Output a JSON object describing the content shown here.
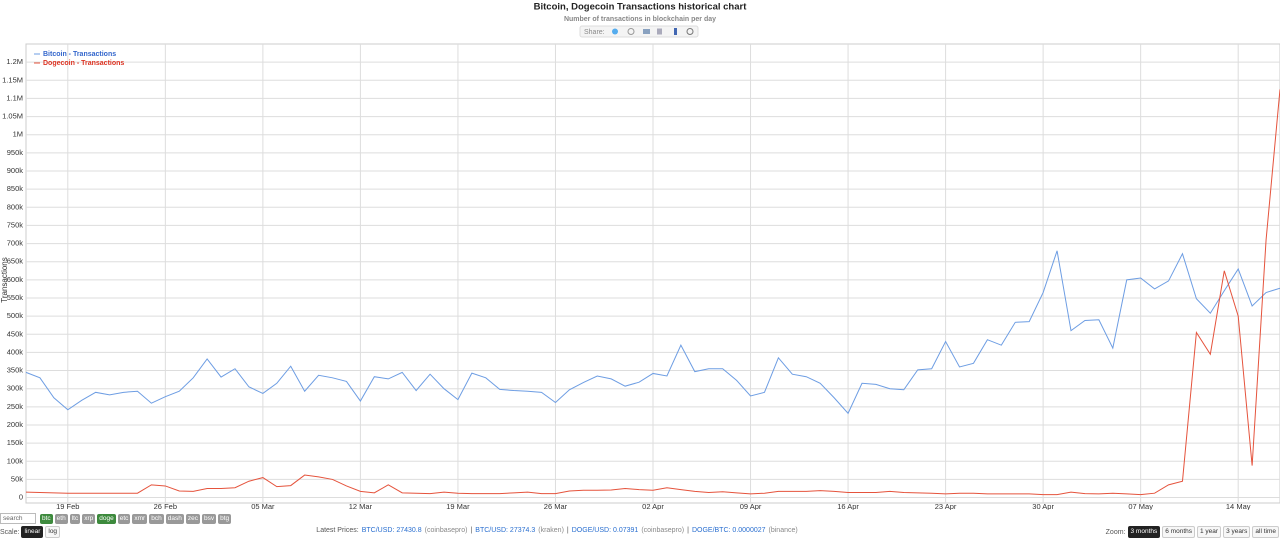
{
  "chart_data": {
    "type": "line",
    "title": "Bitcoin, Dogecoin Transactions historical chart",
    "subtitle": "Number of transactions in blockchain per day",
    "y_label": "Transactions",
    "categories": [
      null,
      null,
      null,
      "19 Feb",
      null,
      null,
      null,
      null,
      null,
      null,
      "26 Feb",
      null,
      null,
      null,
      null,
      null,
      null,
      "05 Mar",
      null,
      null,
      null,
      null,
      null,
      null,
      "12 Mar",
      null,
      null,
      null,
      null,
      null,
      null,
      "19 Mar",
      null,
      null,
      null,
      null,
      null,
      null,
      "26 Mar",
      null,
      null,
      null,
      null,
      null,
      null,
      "02 Apr",
      null,
      null,
      null,
      null,
      null,
      null,
      "09 Apr",
      null,
      null,
      null,
      null,
      null,
      null,
      "16 Apr",
      null,
      null,
      null,
      null,
      null,
      null,
      "23 Apr",
      null,
      null,
      null,
      null,
      null,
      null,
      "30 Apr",
      null,
      null,
      null,
      null,
      null,
      null,
      "07 May",
      null,
      null,
      null,
      null,
      null,
      null,
      "14 May",
      null,
      null,
      null
    ],
    "series": [
      {
        "name": "Bitcoin - Transactions",
        "color": "#6d9de3",
        "text_color": "#3366cc",
        "values": [
          345000,
          330000,
          275000,
          242000,
          268000,
          290000,
          283000,
          290000,
          293000,
          260000,
          278000,
          293000,
          330000,
          382000,
          332000,
          355000,
          305000,
          287000,
          315000,
          362000,
          293000,
          337000,
          330000,
          320000,
          266000,
          333000,
          327000,
          345000,
          295000,
          340000,
          300000,
          270000,
          343000,
          330000,
          298000,
          295000,
          293000,
          290000,
          262000,
          297000,
          317000,
          335000,
          327000,
          307000,
          318000,
          342000,
          335000,
          420000,
          347000,
          355000,
          355000,
          323000,
          280000,
          290000,
          385000,
          340000,
          333000,
          315000,
          275000,
          232000,
          315000,
          312000,
          300000,
          297000,
          352000,
          355000,
          430000,
          360000,
          370000,
          435000,
          420000,
          483000,
          485000,
          565000,
          680000,
          460000,
          488000,
          490000,
          412000,
          600000,
          605000,
          575000,
          597000,
          672000,
          548000,
          508000,
          570000,
          630000,
          528000,
          565000,
          577000
        ]
      },
      {
        "name": "Dogecoin - Transactions",
        "color": "#e5533c",
        "text_color": "#dd3322",
        "values": [
          15000,
          14000,
          13000,
          12000,
          12000,
          12000,
          12000,
          12000,
          12000,
          35000,
          32000,
          18000,
          17000,
          25000,
          25000,
          27000,
          45000,
          55000,
          30000,
          33000,
          62000,
          57000,
          50000,
          32000,
          17000,
          13000,
          35000,
          13000,
          12000,
          11000,
          15000,
          12000,
          11000,
          11000,
          11000,
          13000,
          15000,
          11000,
          11000,
          18000,
          20000,
          20000,
          21000,
          25000,
          22000,
          20000,
          27000,
          22000,
          17000,
          14000,
          16000,
          13000,
          10000,
          12000,
          17000,
          17000,
          17000,
          19000,
          17000,
          14000,
          14000,
          14000,
          17000,
          14000,
          13000,
          12000,
          10000,
          12000,
          12000,
          10000,
          10000,
          10000,
          10000,
          8000,
          8000,
          15000,
          11000,
          10000,
          12000,
          10000,
          8000,
          12000,
          35000,
          45000,
          455000,
          395000,
          625000,
          500000,
          88000,
          710000,
          1125000
        ]
      }
    ],
    "ylim": [
      -15000,
      1250000
    ],
    "yticks": [
      0,
      {
        "value": 50000,
        "label": "50k"
      },
      {
        "value": 100000,
        "label": "100k"
      },
      {
        "value": 150000,
        "label": "150k"
      },
      {
        "value": 200000,
        "label": "200k"
      },
      {
        "value": 250000,
        "label": "250k"
      },
      {
        "value": 300000,
        "label": "300k"
      },
      {
        "value": 350000,
        "label": "350k"
      },
      {
        "value": 400000,
        "label": "400k"
      },
      {
        "value": 450000,
        "label": "450k"
      },
      {
        "value": 500000,
        "label": "500k"
      },
      {
        "value": 550000,
        "label": "550k"
      },
      {
        "value": 600000,
        "label": "600k"
      },
      {
        "value": 650000,
        "label": "650k"
      },
      {
        "value": 700000,
        "label": "700k"
      },
      {
        "value": 750000,
        "label": "750k"
      },
      {
        "value": 800000,
        "label": "800k"
      },
      {
        "value": 850000,
        "label": "850k"
      },
      {
        "value": 900000,
        "label": "900k"
      },
      {
        "value": 950000,
        "label": "950k"
      },
      {
        "value": 1000000,
        "label": "1M"
      },
      {
        "value": 1050000,
        "label": "1.05M"
      },
      {
        "value": 1100000,
        "label": "1.1M"
      },
      {
        "value": 1150000,
        "label": "1.15M"
      },
      {
        "value": 1200000,
        "label": "1.2M"
      }
    ],
    "grid": true,
    "legend": "top-left"
  },
  "share": {
    "label": "Share:"
  },
  "search": {
    "placeholder": "search"
  },
  "coins": [
    {
      "label": "btc",
      "selected": true
    },
    {
      "label": "eth",
      "selected": false
    },
    {
      "label": "ltc",
      "selected": false
    },
    {
      "label": "xrp",
      "selected": false
    },
    {
      "label": "doge",
      "selected": true
    },
    {
      "label": "etc",
      "selected": false
    },
    {
      "label": "xmr",
      "selected": false
    },
    {
      "label": "bch",
      "selected": false
    },
    {
      "label": "dash",
      "selected": false
    },
    {
      "label": "zec",
      "selected": false
    },
    {
      "label": "bsv",
      "selected": false
    },
    {
      "label": "btg",
      "selected": false
    }
  ],
  "scale": {
    "label": "Scale:",
    "options": [
      "linear",
      "log"
    ],
    "active": 0
  },
  "prices": {
    "label": "Latest Prices:",
    "separator": "|",
    "items": [
      {
        "pair": "BTC/USD:",
        "price": 27430.8,
        "source": "(coinbasepro)"
      },
      {
        "pair": "BTC/USD:",
        "price": 27374.3,
        "source": "(kraken)"
      },
      {
        "pair": "DOGE/USD:",
        "price": 0.07391,
        "source": "(coinbasepro)"
      },
      {
        "pair": "DOGE/BTC:",
        "price": 2.7e-06,
        "source": "(binance)"
      }
    ]
  },
  "zoom": {
    "label": "Zoom:",
    "options": [
      "3 months",
      "6 months",
      "1 year",
      "3 years",
      "all time"
    ],
    "active": 0
  }
}
